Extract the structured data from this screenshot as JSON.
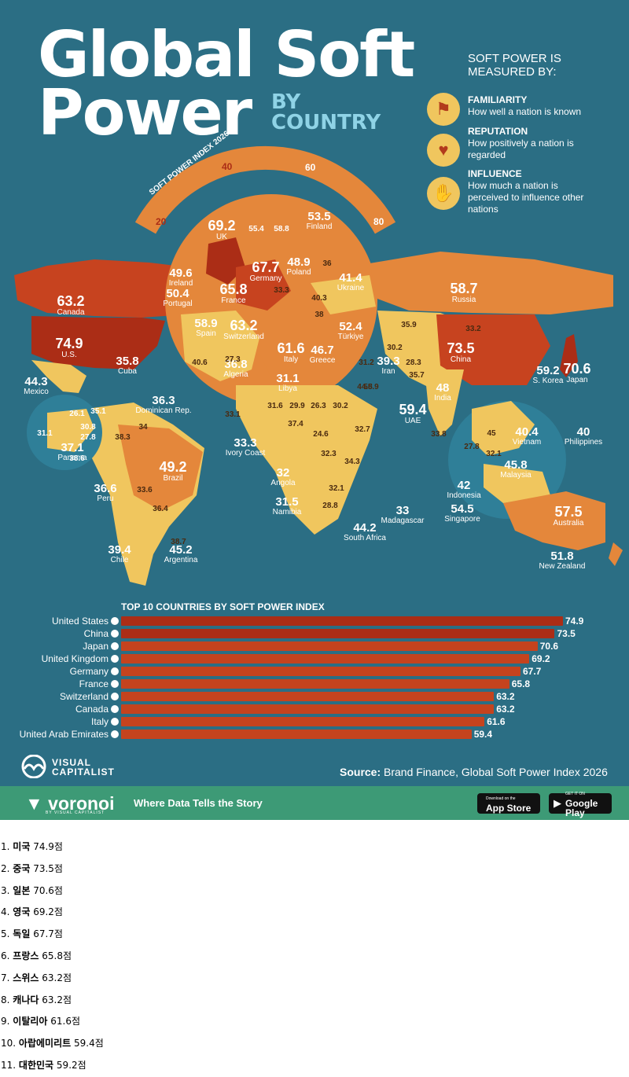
{
  "title": {
    "line1": "Global Soft",
    "line2": "Power",
    "by": "BY",
    "country": "COUNTRY"
  },
  "legend": {
    "heading": "SOFT POWER IS MEASURED BY:",
    "items": [
      {
        "name": "FAMILIARITY",
        "desc": "How well a nation is known",
        "icon": "flags-icon"
      },
      {
        "name": "REPUTATION",
        "desc": "How positively a nation is regarded",
        "icon": "heart-hand-icon"
      },
      {
        "name": "INFLUENCE",
        "desc": "How much a nation is perceived to influence other nations",
        "icon": "handshake-icon"
      }
    ]
  },
  "scale": {
    "label": "SOFT POWER INDEX 2026",
    "ticks": [
      "20",
      "40",
      "60",
      "80"
    ]
  },
  "colors": {
    "ocean": "#2b6e84",
    "land_low": "#f0c65e",
    "land_mid": "#e4873b",
    "land_high": "#c7431f",
    "land_top": "#ab2d16",
    "bar": "#c5431e",
    "footer": "#3d9a76"
  },
  "map": {
    "labelled_countries": [
      {
        "name": "Canada",
        "value": "63.2"
      },
      {
        "name": "U.S.",
        "value": "74.9"
      },
      {
        "name": "Mexico",
        "value": "44.3"
      },
      {
        "name": "Cuba",
        "value": "35.8"
      },
      {
        "name": "Dominican Rep.",
        "value": "36.3"
      },
      {
        "name": "Panama",
        "value": "37.1"
      },
      {
        "name": "Brazil",
        "value": "49.2"
      },
      {
        "name": "Peru",
        "value": "36.6"
      },
      {
        "name": "Chile",
        "value": "39.4"
      },
      {
        "name": "Argentina",
        "value": "45.2"
      },
      {
        "name": "UK",
        "value": "69.2"
      },
      {
        "name": "Ireland",
        "value": "49.6"
      },
      {
        "name": "Portugal",
        "value": "50.4"
      },
      {
        "name": "France",
        "value": "65.8"
      },
      {
        "name": "Spain",
        "value": "58.9"
      },
      {
        "name": "Switzerland",
        "value": "63.2"
      },
      {
        "name": "Germany",
        "value": "67.7"
      },
      {
        "name": "Poland",
        "value": "48.9"
      },
      {
        "name": "Finland",
        "value": "53.5"
      },
      {
        "name": "Ukraine",
        "value": "41.4"
      },
      {
        "name": "Italy",
        "value": "61.6"
      },
      {
        "name": "Greece",
        "value": "46.7"
      },
      {
        "name": "Türkiye",
        "value": "52.4"
      },
      {
        "name": "Algeria",
        "value": "36.8"
      },
      {
        "name": "Libya",
        "value": "31.1"
      },
      {
        "name": "Russia",
        "value": "58.7"
      },
      {
        "name": "Iran",
        "value": "39.3"
      },
      {
        "name": "China",
        "value": "73.5"
      },
      {
        "name": "S. Korea",
        "value": "59.2"
      },
      {
        "name": "Japan",
        "value": "70.6"
      },
      {
        "name": "India",
        "value": "48"
      },
      {
        "name": "UAE",
        "value": "59.4"
      },
      {
        "name": "Vietnam",
        "value": "40.4"
      },
      {
        "name": "Philippines",
        "value": "40"
      },
      {
        "name": "Malaysia",
        "value": "45.8"
      },
      {
        "name": "Indonesia",
        "value": "42"
      },
      {
        "name": "Singapore",
        "value": "54.5"
      },
      {
        "name": "Australia",
        "value": "57.5"
      },
      {
        "name": "New Zealand",
        "value": "51.8"
      },
      {
        "name": "Ivory Coast",
        "value": "33.3"
      },
      {
        "name": "Angola",
        "value": "32"
      },
      {
        "name": "Namibia",
        "value": "31.5"
      },
      {
        "name": "Madagascar",
        "value": "33"
      },
      {
        "name": "South Africa",
        "value": "44.2"
      }
    ],
    "unlabelled_values": [
      "55.4",
      "58.8",
      "36",
      "33.3",
      "40.3",
      "38",
      "35.9",
      "33.2",
      "30.2",
      "31.2",
      "28.3",
      "35.7",
      "44.8",
      "55.9",
      "27.3",
      "33.1",
      "31.6",
      "29.9",
      "26.3",
      "30.2",
      "37.4",
      "24.6",
      "32.7",
      "32.3",
      "34.3",
      "32.1",
      "28.8",
      "33.8",
      "45",
      "27.8",
      "32.1",
      "40.6",
      "26.1",
      "30.8",
      "27.8",
      "31.1",
      "35.1",
      "38.3",
      "34",
      "38.6",
      "33.6",
      "36.4",
      "38.7"
    ]
  },
  "chart_data": {
    "type": "bar",
    "title": "TOP 10 COUNTRIES BY SOFT POWER INDEX",
    "categories": [
      "United States",
      "China",
      "Japan",
      "United Kingdom",
      "Germany",
      "France",
      "Switzerland",
      "Canada",
      "Italy",
      "United Arab Emirates"
    ],
    "values": [
      74.9,
      73.5,
      70.6,
      69.2,
      67.7,
      65.8,
      63.2,
      63.2,
      61.6,
      59.4
    ],
    "value_labels": [
      "74.9",
      "73.5",
      "70.6",
      "69.2",
      "67.7",
      "65.8",
      "63.2",
      "63.2",
      "61.6",
      "59.4"
    ],
    "orientation": "horizontal",
    "xlim": [
      0,
      80
    ],
    "grid": false,
    "legend": "none"
  },
  "source": {
    "label": "Source:",
    "text": "Brand Finance, Global Soft Power Index 2026"
  },
  "branding": {
    "publisher": "VISUAL CAPITALIST",
    "app": "voronoi",
    "app_sub": "BY VISUAL CAPITALIST",
    "tagline": "Where Data Tells the Story",
    "app_store_small": "Download on the",
    "app_store": "App Store",
    "google_small": "GET IT ON",
    "google": "Google Play"
  },
  "ranking": [
    {
      "rank": "1.",
      "name": "미국",
      "score": "74.9점"
    },
    {
      "rank": "2.",
      "name": "중국",
      "score": "73.5점"
    },
    {
      "rank": "3.",
      "name": "일본",
      "score": "70.6점"
    },
    {
      "rank": "4.",
      "name": "영국",
      "score": "69.2점"
    },
    {
      "rank": "5.",
      "name": "독일",
      "score": "67.7점"
    },
    {
      "rank": "6.",
      "name": "프랑스",
      "score": "65.8점"
    },
    {
      "rank": "7.",
      "name": "스위스",
      "score": "63.2점"
    },
    {
      "rank": "8.",
      "name": "캐나다",
      "score": "63.2점"
    },
    {
      "rank": "9.",
      "name": "이탈리아",
      "score": "61.6점"
    },
    {
      "rank": "10.",
      "name": "아랍에미리트",
      "score": "59.4점"
    },
    {
      "rank": "11.",
      "name": "대한민국",
      "score": "59.2점"
    }
  ]
}
